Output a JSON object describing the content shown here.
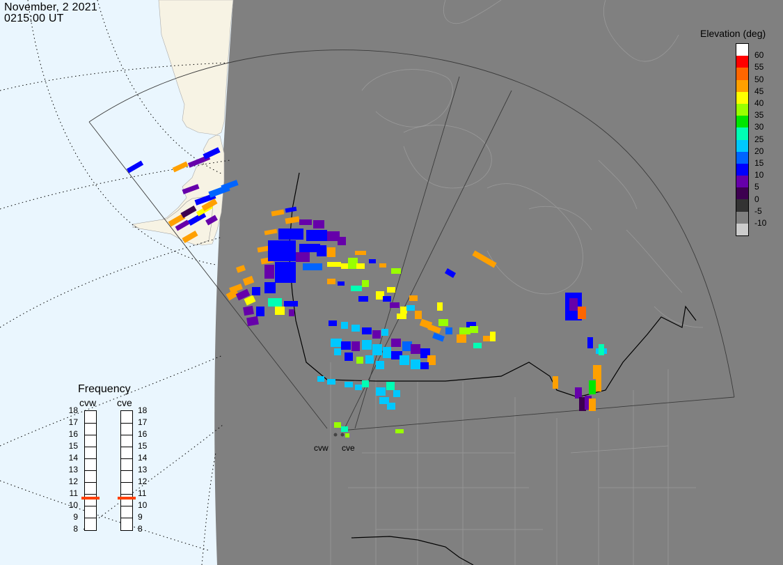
{
  "header": {
    "date": "November, 2 2021",
    "time": "0215:00 UT"
  },
  "colorbar": {
    "title": "Elevation (deg)",
    "levels": [
      {
        "label": "60",
        "color": "#ffffff"
      },
      {
        "label": "55",
        "color": "#ff0000"
      },
      {
        "label": "50",
        "color": "#ff6600"
      },
      {
        "label": "45",
        "color": "#ffa000"
      },
      {
        "label": "40",
        "color": "#ffff00"
      },
      {
        "label": "35",
        "color": "#99ff00"
      },
      {
        "label": "30",
        "color": "#00e600"
      },
      {
        "label": "25",
        "color": "#00ffb4"
      },
      {
        "label": "20",
        "color": "#00c8ff"
      },
      {
        "label": "15",
        "color": "#0064ff"
      },
      {
        "label": "10",
        "color": "#0000ff"
      },
      {
        "label": "5",
        "color": "#6600aa"
      },
      {
        "label": "0",
        "color": "#3d0050"
      },
      {
        "label": "-5",
        "color": "#333333"
      },
      {
        "label": "-10",
        "color": "#808080"
      },
      {
        "label": "",
        "color": "#cccccc"
      }
    ]
  },
  "frequency": {
    "title": "Frequency",
    "radars": [
      {
        "name": "cvw",
        "value": 10.6
      },
      {
        "name": "cve",
        "value": 10.6
      }
    ],
    "scale": [
      "18",
      "17",
      "16",
      "15",
      "14",
      "13",
      "12",
      "11",
      "10",
      "9",
      "8"
    ]
  },
  "sites": [
    {
      "label": "cvw"
    },
    {
      "label": "cve"
    }
  ],
  "colors": {
    "land": "#808080",
    "ocean": "#eaf6fe",
    "outside_land": "#f7f3e4",
    "marker": "#ff4000"
  }
}
